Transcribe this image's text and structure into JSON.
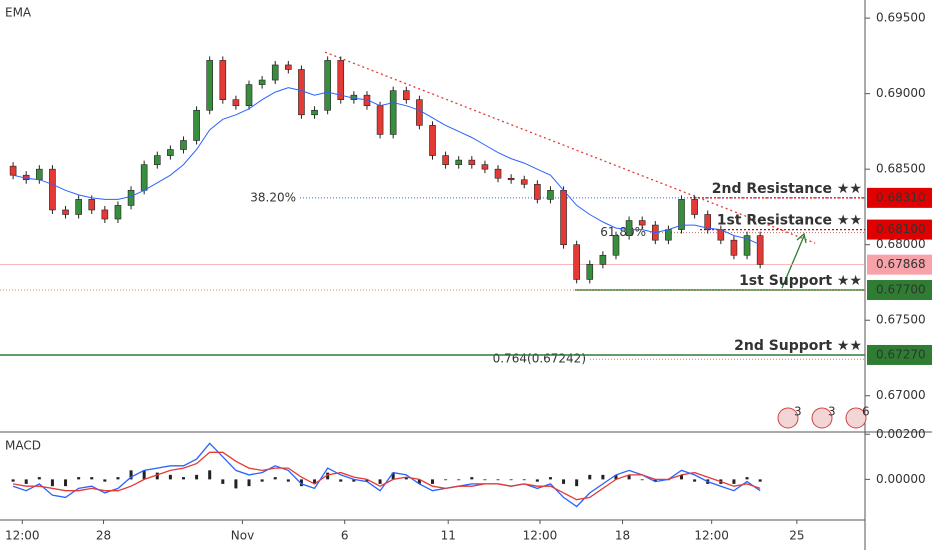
{
  "chart_data": {
    "type": "candlestick",
    "xlim": [
      -1,
      65
    ],
    "xticks": [
      {
        "value": 0.7,
        "label": "12:00"
      },
      {
        "value": 6.9,
        "label": "28"
      },
      {
        "value": 17.5,
        "label": "Nov"
      },
      {
        "value": 25.3,
        "label": "6"
      },
      {
        "value": 33.2,
        "label": "11"
      },
      {
        "value": 40.2,
        "label": "12:00"
      },
      {
        "value": 46.5,
        "label": "18"
      },
      {
        "value": 53.3,
        "label": "12:00"
      },
      {
        "value": 59.8,
        "label": "25"
      }
    ],
    "ylim": [
      0.6676,
      0.6962
    ],
    "yticks": [
      {
        "value": 0.695,
        "label": "0.69500"
      },
      {
        "value": 0.69,
        "label": "0.69000"
      },
      {
        "value": 0.685,
        "label": "0.68500"
      },
      {
        "value": 0.68,
        "label": "0.68000"
      },
      {
        "value": 0.675,
        "label": "0.67500"
      },
      {
        "value": 0.67,
        "label": "0.67000"
      }
    ],
    "up_color": "#388e3c",
    "down_color": "#e53935",
    "open": [
      0.6852,
      0.6846,
      0.6843,
      0.685,
      0.6823,
      0.682,
      0.683,
      0.6823,
      0.6817,
      0.6826,
      0.6836,
      0.6853,
      0.6859,
      0.6863,
      0.6869,
      0.6889,
      0.6922,
      0.6896,
      0.6892,
      0.6906,
      0.6909,
      0.6919,
      0.6916,
      0.6886,
      0.6889,
      0.6922,
      0.6896,
      0.6899,
      0.6892,
      0.6873,
      0.6902,
      0.6896,
      0.6879,
      0.6859,
      0.6853,
      0.6856,
      0.6853,
      0.685,
      0.6844,
      0.6843,
      0.684,
      0.683,
      0.6836,
      0.68,
      0.6777,
      0.6787,
      0.6793,
      0.6806,
      0.6816,
      0.6813,
      0.6803,
      0.681,
      0.683,
      0.682,
      0.681,
      0.6803,
      0.6793,
      0.6806
    ],
    "close": [
      0.6846,
      0.6843,
      0.685,
      0.6823,
      0.682,
      0.683,
      0.6823,
      0.6817,
      0.6826,
      0.6836,
      0.6853,
      0.6859,
      0.6863,
      0.6869,
      0.6889,
      0.6922,
      0.6896,
      0.6892,
      0.6906,
      0.6909,
      0.6919,
      0.6916,
      0.6886,
      0.6889,
      0.6922,
      0.6896,
      0.6899,
      0.6892,
      0.6873,
      0.6902,
      0.6896,
      0.6879,
      0.6859,
      0.6853,
      0.6856,
      0.6853,
      0.685,
      0.6844,
      0.6843,
      0.684,
      0.683,
      0.6836,
      0.68,
      0.6777,
      0.6787,
      0.6793,
      0.6806,
      0.6816,
      0.6813,
      0.6803,
      0.681,
      0.683,
      0.682,
      0.681,
      0.6803,
      0.6793,
      0.6806,
      0.6787
    ],
    "ema": {
      "name": "EMA",
      "color": "#2962ff",
      "values": [
        0.6846,
        0.6844,
        0.6843,
        0.684,
        0.6836,
        0.6833,
        0.6831,
        0.683,
        0.683,
        0.6832,
        0.6836,
        0.6841,
        0.6846,
        0.6853,
        0.6863,
        0.6876,
        0.6883,
        0.6886,
        0.689,
        0.6896,
        0.6901,
        0.6904,
        0.6902,
        0.6899,
        0.6901,
        0.6899,
        0.6897,
        0.6896,
        0.6892,
        0.6894,
        0.6892,
        0.6889,
        0.6884,
        0.6879,
        0.6875,
        0.6871,
        0.6866,
        0.6861,
        0.6857,
        0.6854,
        0.685,
        0.6846,
        0.6836,
        0.6826,
        0.682,
        0.6815,
        0.6811,
        0.681,
        0.681,
        0.6808,
        0.681,
        0.6813,
        0.6813,
        0.6811,
        0.681,
        0.6806,
        0.6804,
        0.68
      ]
    },
    "current": {
      "value": 0.67868,
      "label": "0.67868",
      "color": "#f7a1a8"
    },
    "levels": [
      {
        "name": "2nd Resistance ★★",
        "value": 0.6831,
        "label": "0.68310",
        "color": "#e00000",
        "style": "dotted"
      },
      {
        "name": "1st Resistance ★★",
        "value": 0.681,
        "label": "0.68100",
        "color": "#e00000",
        "style": "dotted"
      },
      {
        "name": "1st Support ★★",
        "value": 0.677,
        "label": "0.67700",
        "color": "#2e7d32",
        "style": "solid"
      },
      {
        "name": "2nd Support ★★",
        "value": 0.6727,
        "label": "0.67270",
        "color": "#2e7d32",
        "style": "solid"
      }
    ],
    "fibs": [
      {
        "label": "38.20%",
        "value": 0.6831,
        "color": "#2962ff"
      },
      {
        "label": "61.80%",
        "value": 0.6808,
        "color": "#b0756a"
      },
      {
        "label": "0.764(0.67242)",
        "value": 0.67242,
        "color": "#e08050"
      }
    ],
    "trendline": {
      "x": [
        23.8,
        61.2
      ],
      "y": [
        0.69275,
        0.6801
      ],
      "color": "#e53935"
    },
    "events": [
      "3",
      "3",
      "6"
    ],
    "macd": {
      "title": "MACD",
      "ylim": [
        -0.0018,
        0.0021
      ],
      "yticks": [
        {
          "value": 0.002,
          "label": "0.00200"
        },
        {
          "value": 0,
          "label": "0.00000"
        }
      ],
      "macd": {
        "color": "#2962ff",
        "values": [
          -0.0003,
          -0.0005,
          -0.0002,
          -0.0007,
          -0.0008,
          -0.0004,
          -0.0003,
          -0.0006,
          -0.0004,
          0.0001,
          0.0004,
          0.0005,
          0.0006,
          0.0006,
          0.0009,
          0.0016,
          0.001,
          0.0004,
          0.0002,
          0.0003,
          0.0006,
          0.0004,
          -0.0002,
          -0.0004,
          0.0005,
          0.0002,
          0,
          -0.0001,
          -0.0005,
          0.0003,
          0.0002,
          -0.0002,
          -0.0005,
          -0.0004,
          -0.0003,
          -0.0002,
          -0.0002,
          -0.0002,
          -0.0003,
          -0.0002,
          -0.0004,
          -0.0002,
          -0.0008,
          -0.0012,
          -0.0006,
          -0.0002,
          0.0002,
          0.0004,
          0.0002,
          -0.0001,
          0,
          0.0004,
          0.0002,
          -0.0001,
          -0.0003,
          -0.0005,
          -0.0001,
          -0.0005
        ]
      },
      "signal": {
        "color": "#e53935",
        "values": [
          -0.0002,
          -0.0003,
          -0.0003,
          -0.0004,
          -0.0005,
          -0.0005,
          -0.0004,
          -0.0005,
          -0.0005,
          -0.0003,
          0,
          0.0002,
          0.0004,
          0.0005,
          0.0007,
          0.0012,
          0.0012,
          0.0008,
          0.0005,
          0.0004,
          0.0005,
          0.0005,
          0.0001,
          -0.0002,
          0.0002,
          0.0003,
          0.0001,
          0,
          -0.0003,
          0,
          0.0001,
          0,
          -0.0003,
          -0.0004,
          -0.0003,
          -0.0003,
          -0.0002,
          -0.0002,
          -0.0003,
          -0.0002,
          -0.0003,
          -0.0003,
          -0.0006,
          -0.0009,
          -0.0008,
          -0.0004,
          0,
          0.0002,
          0.0002,
          0,
          0,
          0.0002,
          0.0003,
          0.0001,
          -0.0001,
          -0.0003,
          -0.0002,
          -0.0004
        ]
      },
      "histogram": {
        "color": "#222222",
        "values": [
          -0.0001,
          -0.0002,
          0.0001,
          -0.0003,
          -0.0003,
          0.0001,
          0.0001,
          -0.0001,
          0.0001,
          0.0004,
          0.0004,
          0.0003,
          0.0002,
          0.0001,
          0.0002,
          0.0004,
          -0.0002,
          -0.0004,
          -0.0003,
          -0.0001,
          0.0001,
          -0.0001,
          -0.0003,
          -0.0002,
          0.0003,
          -0.0001,
          -0.0001,
          -0.0001,
          -0.0002,
          0.0003,
          0.0001,
          -0.0002,
          -0.0002,
          0,
          0,
          0.0001,
          0,
          0,
          0,
          0,
          -0.0001,
          0.0001,
          -0.0002,
          -0.0003,
          0.0002,
          0.0002,
          0.0002,
          0.0002,
          0,
          -0.0001,
          0,
          0.0002,
          -0.0001,
          -0.0002,
          -0.0002,
          -0.0002,
          0.0001,
          -0.0001
        ]
      }
    }
  }
}
